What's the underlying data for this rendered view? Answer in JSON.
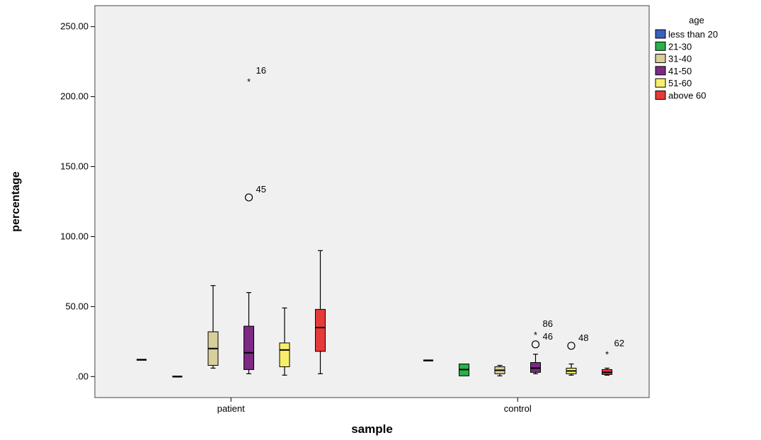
{
  "chart_data": {
    "type": "boxplot",
    "xlabel": "sample",
    "ylabel": "percentage",
    "ylim": [
      -15,
      265
    ],
    "yticks": [
      0,
      50,
      100,
      150,
      200,
      250
    ],
    "ytick_labels": [
      ".00",
      "50.00",
      "100.00",
      "150.00",
      "200.00",
      "250.00"
    ],
    "categories": [
      "patient",
      "control"
    ],
    "grid": false,
    "legend": {
      "title": "age",
      "placement": "right"
    },
    "series": [
      {
        "name": "less than 20",
        "color": "#3a5fbf",
        "boxes": [
          {
            "min": 12,
            "q1": 12,
            "median": 12,
            "q3": 12,
            "max": 12,
            "outliers": []
          },
          {
            "min": 11.5,
            "q1": 11.5,
            "median": 11.5,
            "q3": 11.5,
            "max": 11.5,
            "outliers": []
          }
        ]
      },
      {
        "name": "21-30",
        "color": "#2bb04a",
        "boxes": [
          {
            "min": 0,
            "q1": 0,
            "median": 0,
            "q3": 0,
            "max": 0,
            "outliers": []
          },
          {
            "min": 0.5,
            "q1": 0.5,
            "median": 5,
            "q3": 9,
            "max": 9,
            "outliers": []
          }
        ]
      },
      {
        "name": "31-40",
        "color": "#d8cf9a",
        "boxes": [
          {
            "min": 6,
            "q1": 8,
            "median": 20,
            "q3": 32,
            "max": 65,
            "outliers": []
          },
          {
            "min": 0.5,
            "q1": 2,
            "median": 4.5,
            "q3": 7,
            "max": 8,
            "outliers": []
          }
        ]
      },
      {
        "name": "41-50",
        "color": "#7d2a84",
        "boxes": [
          {
            "min": 2,
            "q1": 5,
            "median": 17,
            "q3": 36,
            "max": 60,
            "outliers": [
              {
                "value": 213,
                "label": "16",
                "marker": "star"
              },
              {
                "value": 128,
                "label": "45",
                "marker": "circle"
              }
            ]
          },
          {
            "min": 2,
            "q1": 3,
            "median": 6,
            "q3": 10,
            "max": 16,
            "outliers": [
              {
                "value": 32,
                "label": "86",
                "marker": "star"
              },
              {
                "value": 23,
                "label": "46",
                "marker": "circle"
              }
            ]
          }
        ]
      },
      {
        "name": "51-60",
        "color": "#f7ef6c",
        "boxes": [
          {
            "min": 1,
            "q1": 7,
            "median": 19,
            "q3": 24,
            "max": 49,
            "outliers": []
          },
          {
            "min": 1,
            "q1": 2,
            "median": 4,
            "q3": 6,
            "max": 9,
            "outliers": [
              {
                "value": 22,
                "label": "48",
                "marker": "circle"
              }
            ]
          }
        ]
      },
      {
        "name": "above 60",
        "color": "#e53a3a",
        "boxes": [
          {
            "min": 2,
            "q1": 18,
            "median": 35,
            "q3": 48,
            "max": 90,
            "outliers": []
          },
          {
            "min": 1,
            "q1": 1.5,
            "median": 3,
            "q3": 5,
            "max": 6,
            "outliers": [
              {
                "value": 18,
                "label": "62",
                "marker": "star"
              }
            ]
          }
        ]
      }
    ]
  }
}
